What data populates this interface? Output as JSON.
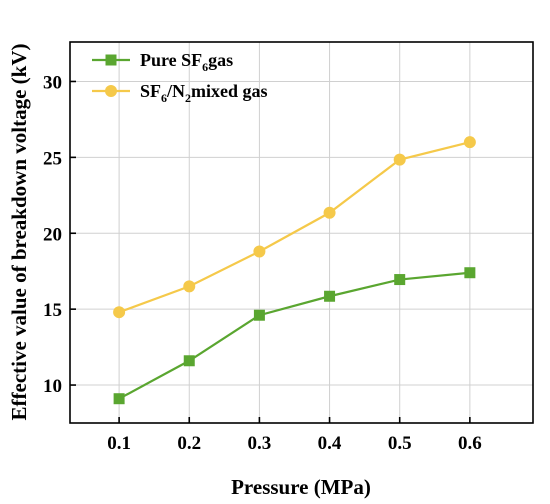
{
  "chart_data": {
    "type": "line",
    "xlabel": "Pressure (MPa)",
    "ylabel": "Effective value of breakdown voltage (kV)",
    "x": [
      0.1,
      0.2,
      0.3,
      0.4,
      0.5,
      0.6
    ],
    "x_tick_labels": [
      "0.1",
      "0.2",
      "0.3",
      "0.4",
      "0.5",
      "0.6"
    ],
    "xlim": [
      0.03,
      0.69
    ],
    "y_ticks": [
      10,
      15,
      20,
      25,
      30
    ],
    "y_tick_labels": [
      "10",
      "15",
      "20",
      "25",
      "30"
    ],
    "ylim": [
      7.5,
      32.6
    ],
    "grid": true,
    "legend_position": "top-left",
    "series": [
      {
        "name_parts": [
          {
            "text": "Pure SF",
            "shift": "none"
          },
          {
            "text": "6",
            "shift": "sub"
          },
          {
            "text": "gas",
            "shift": "none"
          }
        ],
        "values": [
          9.1,
          11.6,
          14.6,
          15.85,
          16.95,
          17.4
        ],
        "color": "#5aa630",
        "marker": "square"
      },
      {
        "name_parts": [
          {
            "text": "SF",
            "shift": "none"
          },
          {
            "text": "6",
            "shift": "sub"
          },
          {
            "text": "/N",
            "shift": "none"
          },
          {
            "text": "2",
            "shift": "sub"
          },
          {
            "text": "mixed gas",
            "shift": "none"
          }
        ],
        "values": [
          14.8,
          16.5,
          18.8,
          21.35,
          24.85,
          26.0
        ],
        "color": "#f5c94a",
        "marker": "circle"
      }
    ]
  }
}
